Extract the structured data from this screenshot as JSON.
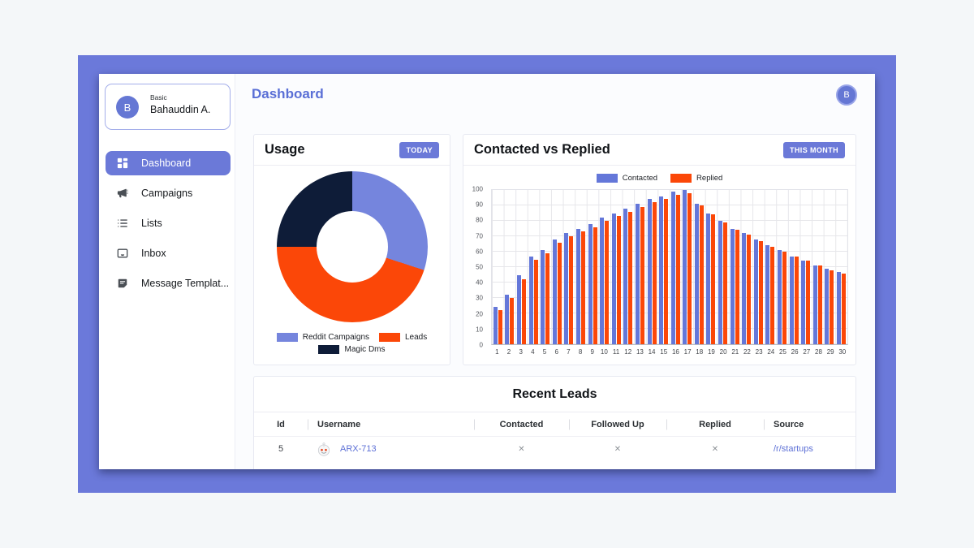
{
  "app": {
    "header": {
      "title": "Dashboard",
      "avatar_initial": "B"
    },
    "colors": {
      "frame_purple": "#6b79da",
      "accent_purple": "#6b79d8",
      "link_purple": "#7f90e2",
      "orange": "#fb4708",
      "navy": "#0e1c38",
      "bar_blue": "#6477d9",
      "donut_blue": "#7585dd"
    }
  },
  "sidebar": {
    "user": {
      "plan": "Basic",
      "name": "Bahauddin A.",
      "avatar_initial": "B"
    },
    "items": [
      {
        "label": "Dashboard",
        "icon": "grid-icon",
        "active": true
      },
      {
        "label": "Campaigns",
        "icon": "megaphone-icon",
        "active": false
      },
      {
        "label": "Lists",
        "icon": "list-icon",
        "active": false
      },
      {
        "label": "Inbox",
        "icon": "inbox-icon",
        "active": false
      },
      {
        "label": "Message Templat...",
        "icon": "note-icon",
        "active": false
      }
    ]
  },
  "usage_card": {
    "title": "Usage",
    "badge": "TODAY"
  },
  "bars_card": {
    "title": "Contacted vs Replied",
    "badge": "THIS MONTH"
  },
  "recent_leads": {
    "title": "Recent Leads",
    "columns": [
      "Id",
      "Username",
      "Contacted",
      "Followed Up",
      "Replied",
      "Source"
    ],
    "rows": [
      {
        "id": "5",
        "username": "ARX-713",
        "contacted": "✕",
        "followed_up": "✕",
        "replied": "✕",
        "source": "/r/startups"
      }
    ]
  },
  "chart_data": [
    {
      "type": "pie",
      "title": "Usage",
      "donut": true,
      "labels": [
        "Reddit Campaigns",
        "Leads",
        "Magic Dms"
      ],
      "values": [
        30,
        45,
        25
      ],
      "colors": [
        "#7585dd",
        "#fb4708",
        "#0e1c38"
      ],
      "legend_position": "bottom"
    },
    {
      "type": "bar",
      "title": "Contacted vs Replied",
      "categories": [
        1,
        2,
        3,
        4,
        5,
        6,
        7,
        8,
        9,
        10,
        11,
        12,
        13,
        14,
        15,
        16,
        17,
        18,
        19,
        20,
        21,
        22,
        23,
        24,
        25,
        26,
        27,
        28,
        29,
        30
      ],
      "series": [
        {
          "name": "Contacted",
          "color": "#6477d9",
          "values": [
            24,
            32,
            45,
            57,
            61,
            68,
            72,
            75,
            78,
            82,
            85,
            88,
            91,
            94,
            96,
            99,
            100,
            91,
            85,
            80,
            75,
            72,
            68,
            64,
            61,
            57,
            54,
            51,
            49,
            47
          ]
        },
        {
          "name": "Replied",
          "color": "#fb4708",
          "values": [
            22,
            30,
            42,
            55,
            59,
            66,
            70,
            73,
            76,
            80,
            83,
            86,
            89,
            92,
            94,
            97,
            98,
            90,
            84,
            79,
            74,
            71,
            67,
            63,
            60,
            57,
            54,
            51,
            48,
            46
          ]
        }
      ],
      "ylim": [
        0,
        100
      ],
      "yticks": [
        0,
        10,
        20,
        30,
        40,
        50,
        60,
        70,
        80,
        90,
        100
      ],
      "grid": true,
      "legend_position": "top"
    }
  ]
}
